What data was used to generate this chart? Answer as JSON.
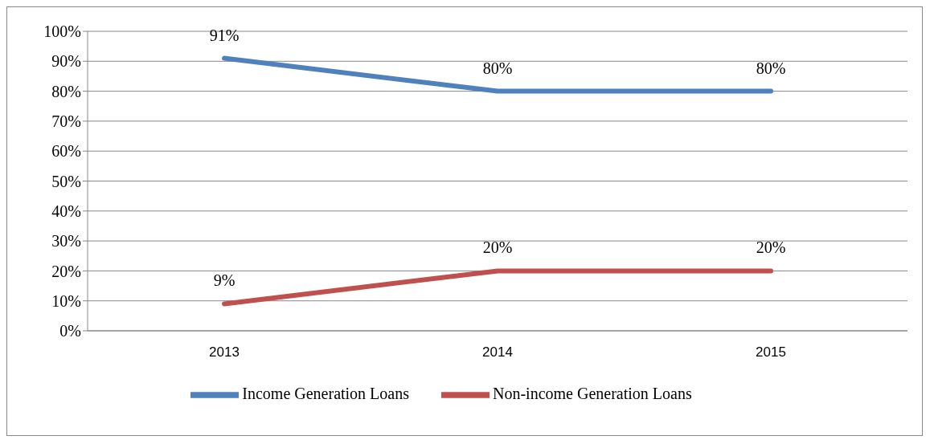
{
  "chart_data": {
    "type": "line",
    "categories": [
      "2013",
      "2014",
      "2015"
    ],
    "series": [
      {
        "name": "Income Generation Loans",
        "color": "#4f81bd",
        "values": [
          91,
          80,
          80
        ],
        "value_labels": [
          "91%",
          "80%",
          "80%"
        ]
      },
      {
        "name": "Non-income Generation Loans",
        "color": "#c0504d",
        "values": [
          9,
          20,
          20
        ],
        "value_labels": [
          "9%",
          "20%",
          "20%"
        ]
      }
    ],
    "ylim": [
      0,
      100
    ],
    "yticks": [
      {
        "value": 0,
        "label": "0%"
      },
      {
        "value": 10,
        "label": "10%"
      },
      {
        "value": 20,
        "label": "20%"
      },
      {
        "value": 30,
        "label": "30%"
      },
      {
        "value": 40,
        "label": "40%"
      },
      {
        "value": 50,
        "label": "50%"
      },
      {
        "value": 60,
        "label": "60%"
      },
      {
        "value": 70,
        "label": "70%"
      },
      {
        "value": 80,
        "label": "80%"
      },
      {
        "value": 90,
        "label": "90%"
      },
      {
        "value": 100,
        "label": "100%"
      }
    ],
    "grid": "y",
    "legend": "bottom",
    "marker": "none",
    "line_style": "solid"
  }
}
